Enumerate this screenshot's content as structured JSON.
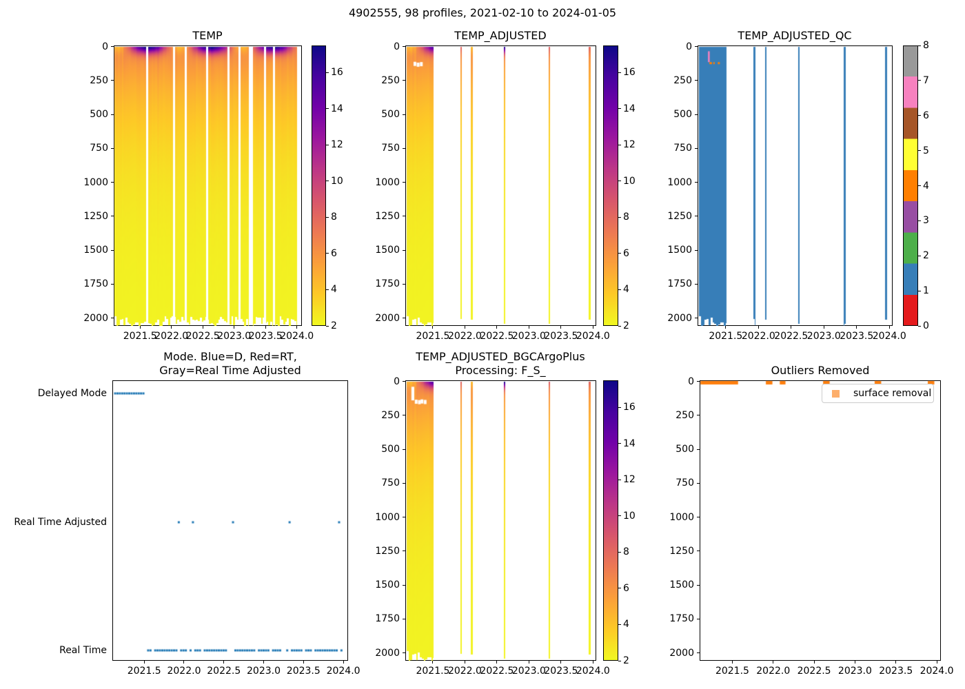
{
  "figure": {
    "suptitle": "4902555, 98 profiles, 2021-02-10 to 2024-01-05",
    "float_id": "4902555",
    "profile_count": 98,
    "date_range": "2021-02-10 to 2024-01-05"
  },
  "palette": {
    "plasma_stops": [
      "#0d0887",
      "#46039f",
      "#7201a8",
      "#9c179e",
      "#bd3786",
      "#d8576b",
      "#ed7953",
      "#fb9f3a",
      "#fdca26",
      "#f0f921"
    ],
    "qc_colors": [
      "#e41a1c",
      "#377eb8",
      "#4daf4a",
      "#984ea3",
      "#ff7f00",
      "#ffff33",
      "#a65628",
      "#f781bf",
      "#999999"
    ],
    "mode_marker": "#1f77b4",
    "outlier_marker": "#ff7f0e",
    "outlier_legend_marker": "#fdae6b",
    "spine_color": "#000000"
  },
  "axes_common": {
    "x_ticks": [
      "2021.5",
      "2022.0",
      "2022.5",
      "2023.0",
      "2023.5",
      "2024.0"
    ],
    "x_tick_values": [
      2021.5,
      2022.0,
      2022.5,
      2023.0,
      2023.5,
      2024.0
    ],
    "depth_ticks": [
      "0",
      "250",
      "500",
      "750",
      "1000",
      "1250",
      "1500",
      "1750",
      "2000"
    ],
    "depth_tick_values": [
      0,
      250,
      500,
      750,
      1000,
      1250,
      1500,
      1750,
      2000
    ],
    "temp_colorbar_ticks": [
      "2",
      "4",
      "6",
      "8",
      "10",
      "12",
      "14",
      "16"
    ],
    "temp_colorbar_tick_values": [
      2,
      4,
      6,
      8,
      10,
      12,
      14,
      16
    ],
    "temp_colorbar_range": [
      2,
      17.5
    ],
    "qc_colorbar_ticks": [
      "0",
      "1",
      "2",
      "3",
      "4",
      "5",
      "6",
      "7",
      "8"
    ],
    "qc_colorbar_tick_values": [
      0,
      1,
      2,
      3,
      4,
      5,
      6,
      7,
      8
    ]
  },
  "chart_data": [
    {
      "id": "temp",
      "type": "heatmap",
      "title": "TEMP",
      "xlim": [
        2021.08,
        2024.08
      ],
      "ylim": [
        0,
        2075
      ],
      "vmin": 2,
      "vmax": 17.5,
      "coverage": [
        [
          2021.09,
          2024.005
        ]
      ],
      "gaps": [
        [
          2021.594,
          2021.626
        ],
        [
          2022.024,
          2022.056
        ],
        [
          2022.214,
          2022.246
        ],
        [
          2022.554,
          2022.586
        ],
        [
          2022.894,
          2022.926
        ],
        [
          2023.074,
          2023.106
        ],
        [
          2023.23,
          2023.295
        ],
        [
          2023.474,
          2023.506
        ],
        [
          2023.614,
          2023.646
        ]
      ],
      "profile_interval_years": 0.0296,
      "profile_start": 2021.135
    },
    {
      "id": "adj",
      "type": "heatmap",
      "title": "TEMP_ADJUSTED",
      "xlim": [
        2021.07,
        2024.05
      ],
      "ylim": [
        0,
        2075
      ],
      "vmin": 2,
      "vmax": 17.5,
      "coverage": [
        [
          2021.09,
          2021.51
        ]
      ],
      "singles": [
        2021.94,
        2022.11,
        2022.62,
        2023.32,
        2023.95
      ],
      "removed_dots": [
        [
          2021.22,
          128
        ],
        [
          2021.27,
          134
        ],
        [
          2021.32,
          130
        ]
      ]
    },
    {
      "id": "qc",
      "type": "heatmap_qc",
      "title": "TEMP_ADJUSTED_QC",
      "xlim": [
        2021.07,
        2024.05
      ],
      "ylim": [
        0,
        2075
      ],
      "fill_qc_value": 1,
      "coverage": [
        [
          2021.09,
          2021.51
        ]
      ],
      "singles": [
        2021.94,
        2022.11,
        2022.62,
        2023.32,
        2023.95
      ],
      "marks": {
        "bar": {
          "qc_value": 7,
          "t": 2021.24,
          "depth": [
            35,
            115
          ]
        },
        "dots": {
          "qc_value": 4,
          "depth": [
            115,
            130
          ],
          "spans": [
            [
              2021.25,
              2021.29
            ],
            [
              2021.31,
              2021.33
            ],
            [
              2021.38,
              2021.41
            ]
          ]
        }
      }
    },
    {
      "id": "mode",
      "type": "scatter",
      "title_lines": [
        "Mode. Blue=D, Red=RT,",
        "Gray=Real Time Adjusted"
      ],
      "categories": [
        "Delayed Mode",
        "Real Time Adjusted",
        "Real Time"
      ],
      "xlim": [
        2021.1,
        2024.06
      ],
      "delayed_mode_range": [
        2021.135,
        2021.515
      ],
      "real_time_range": [
        2021.53,
        2024.005
      ],
      "real_time_adjusted_times": [
        2021.94,
        2022.11,
        2022.62,
        2023.32,
        2023.95
      ],
      "profile_interval_years": 0.0296
    },
    {
      "id": "bgc",
      "type": "heatmap",
      "title_lines": [
        "TEMP_ADJUSTED_BGCArgoPlus",
        "Processing: F_S_"
      ],
      "xlim": [
        2021.07,
        2024.05
      ],
      "ylim": [
        0,
        2075
      ],
      "vmin": 2,
      "vmax": 17.5,
      "coverage": [
        [
          2021.09,
          2021.51
        ]
      ],
      "singles": [
        2021.94,
        2022.11,
        2022.62,
        2023.32,
        2023.95
      ],
      "removed_bar": {
        "t": [
          2021.165,
          2021.21
        ],
        "depth": [
          40,
          140
        ]
      },
      "removed_dots": [
        [
          2021.24,
          150
        ],
        [
          2021.29,
          153
        ],
        [
          2021.33,
          148
        ],
        [
          2021.38,
          152
        ]
      ]
    },
    {
      "id": "out",
      "type": "spans",
      "title": "Outliers Removed",
      "legend_label": "surface removal",
      "xlim": [
        2021.1,
        2024.05
      ],
      "ylim": [
        0,
        2075
      ],
      "depth_band": [
        0,
        25
      ],
      "segments": [
        [
          2021.11,
          2021.57
        ],
        [
          2021.91,
          2021.99
        ],
        [
          2022.08,
          2022.15
        ],
        [
          2022.61,
          2022.69
        ],
        [
          2023.24,
          2023.32
        ],
        [
          2023.89,
          2023.97
        ]
      ]
    }
  ]
}
